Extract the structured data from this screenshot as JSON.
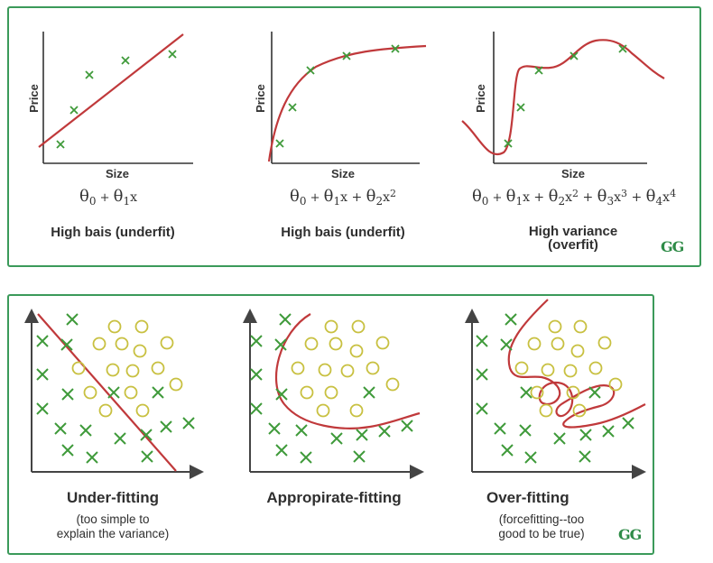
{
  "top": {
    "panels": [
      {
        "xlabel": "Size",
        "ylabel": "Price",
        "equation": "θ0 + θ1x",
        "caption": "High bais (underfit)"
      },
      {
        "xlabel": "Size",
        "ylabel": "Price",
        "equation": "θ0 + θ1x + θ2x2",
        "caption": "High bais (underfit)"
      },
      {
        "xlabel": "Size",
        "ylabel": "Price",
        "equation": "θ0 + θ1x + θ2x2 + θ3x3 + θ4x4",
        "caption_line1": "High variance",
        "caption_line2": "(overfit)"
      }
    ],
    "logo": "GG"
  },
  "bottom": {
    "panels": [
      {
        "title": "Under-fitting",
        "subtitle_line1": "(too simple to",
        "subtitle_line2": "explain the variance)"
      },
      {
        "title": "Appropirate-fitting"
      },
      {
        "title": "Over-fitting",
        "subtitle_line1": "(forcefitting--too",
        "subtitle_line2": "good to be true)"
      }
    ],
    "logo": "GG"
  },
  "colors": {
    "border": "#3b9a5a",
    "curve": "#c0393b",
    "cross": "#3f9a3a",
    "circle": "#c8c040"
  }
}
